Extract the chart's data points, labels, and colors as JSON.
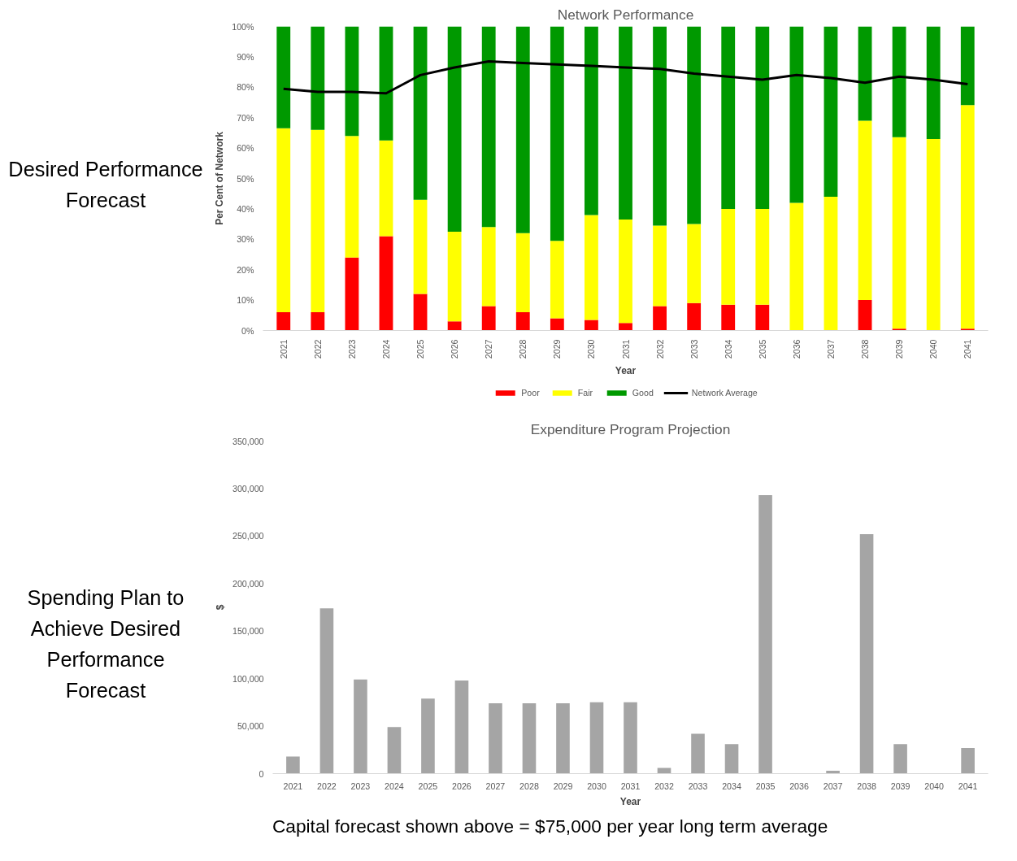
{
  "chart_data": [
    {
      "type": "bar",
      "title": "Network Performance",
      "xlabel": "Year",
      "ylabel": "Per Cent of Network",
      "stacked": true,
      "legend": "bottom",
      "grid": false,
      "annotations": [
        "Desired Performance Forecast"
      ],
      "categories": [
        "2021",
        "2022",
        "2023",
        "2024",
        "2025",
        "2026",
        "2027",
        "2028",
        "2029",
        "2030",
        "2031",
        "2032",
        "2033",
        "2034",
        "2035",
        "2036",
        "2037",
        "2038",
        "2039",
        "2040",
        "2041"
      ],
      "ylim": [
        0,
        100
      ],
      "yticks": [
        {
          "value": 0,
          "label": "0%"
        },
        {
          "value": 10,
          "label": "10%"
        },
        {
          "value": 20,
          "label": "20%"
        },
        {
          "value": 30,
          "label": "30%"
        },
        {
          "value": 40,
          "label": "40%"
        },
        {
          "value": 50,
          "label": "50%"
        },
        {
          "value": 60,
          "label": "60%"
        },
        {
          "value": 70,
          "label": "70%"
        },
        {
          "value": 80,
          "label": "80%"
        },
        {
          "value": 90,
          "label": "90%"
        },
        {
          "value": 100,
          "label": "100%"
        }
      ],
      "series": [
        {
          "name": "Poor",
          "color": "#ff0000",
          "values": [
            6,
            6,
            24,
            31,
            12,
            3,
            8,
            6,
            4,
            3.5,
            2.5,
            8,
            9,
            8.5,
            8.5,
            0,
            0,
            10,
            0.6,
            0,
            0.6
          ]
        },
        {
          "name": "Fair",
          "color": "#ffff00",
          "values": [
            60.5,
            60,
            40,
            31.5,
            31,
            29.5,
            26,
            26,
            25.5,
            34.5,
            34,
            26.5,
            26,
            31.5,
            31.5,
            42,
            44,
            59,
            63,
            63,
            73.5
          ]
        },
        {
          "name": "Good",
          "color": "#009900",
          "values": [
            33.5,
            34,
            36,
            37.5,
            57,
            67.5,
            66,
            68,
            70.5,
            62,
            63.5,
            65.5,
            65,
            60,
            60,
            58,
            56,
            31,
            36.4,
            37,
            25.9
          ]
        },
        {
          "name": "Network Average",
          "type": "line",
          "color": "#000000",
          "marker": "none",
          "line_style": "solid",
          "values": [
            79.5,
            78.5,
            78.5,
            78,
            84,
            86.5,
            88.5,
            88,
            87.5,
            87,
            86.5,
            86,
            84.5,
            83.5,
            82.5,
            84,
            83,
            81.5,
            83.5,
            82.5,
            81
          ]
        }
      ]
    },
    {
      "type": "bar",
      "title": "Expenditure Program Projection",
      "xlabel": "Year",
      "ylabel": "$",
      "grid": false,
      "annotations": [
        "Spending Plan to Achieve Desired Performance Forecast",
        "Capital forecast shown above = $75,000 per year long term average"
      ],
      "categories": [
        "2021",
        "2022",
        "2023",
        "2024",
        "2025",
        "2026",
        "2027",
        "2028",
        "2029",
        "2030",
        "2031",
        "2032",
        "2033",
        "2034",
        "2035",
        "2036",
        "2037",
        "2038",
        "2039",
        "2040",
        "2041"
      ],
      "ylim": [
        0,
        350000
      ],
      "yticks": [
        0,
        {
          "value": 50000,
          "label": "50,000"
        },
        {
          "value": 100000,
          "label": "100,000"
        },
        {
          "value": 150000,
          "label": "150,000"
        },
        {
          "value": 200000,
          "label": "200,000"
        },
        {
          "value": 250000,
          "label": "250,000"
        },
        {
          "value": 300000,
          "label": "300,000"
        },
        {
          "value": 350000,
          "label": "350,000"
        }
      ],
      "color": "#a5a5a5",
      "values": [
        18000,
        174000,
        99000,
        49000,
        79000,
        98000,
        74000,
        74000,
        74000,
        75000,
        75000,
        6000,
        42000,
        31000,
        293000,
        0,
        3000,
        252000,
        31000,
        0,
        27000
      ]
    }
  ]
}
